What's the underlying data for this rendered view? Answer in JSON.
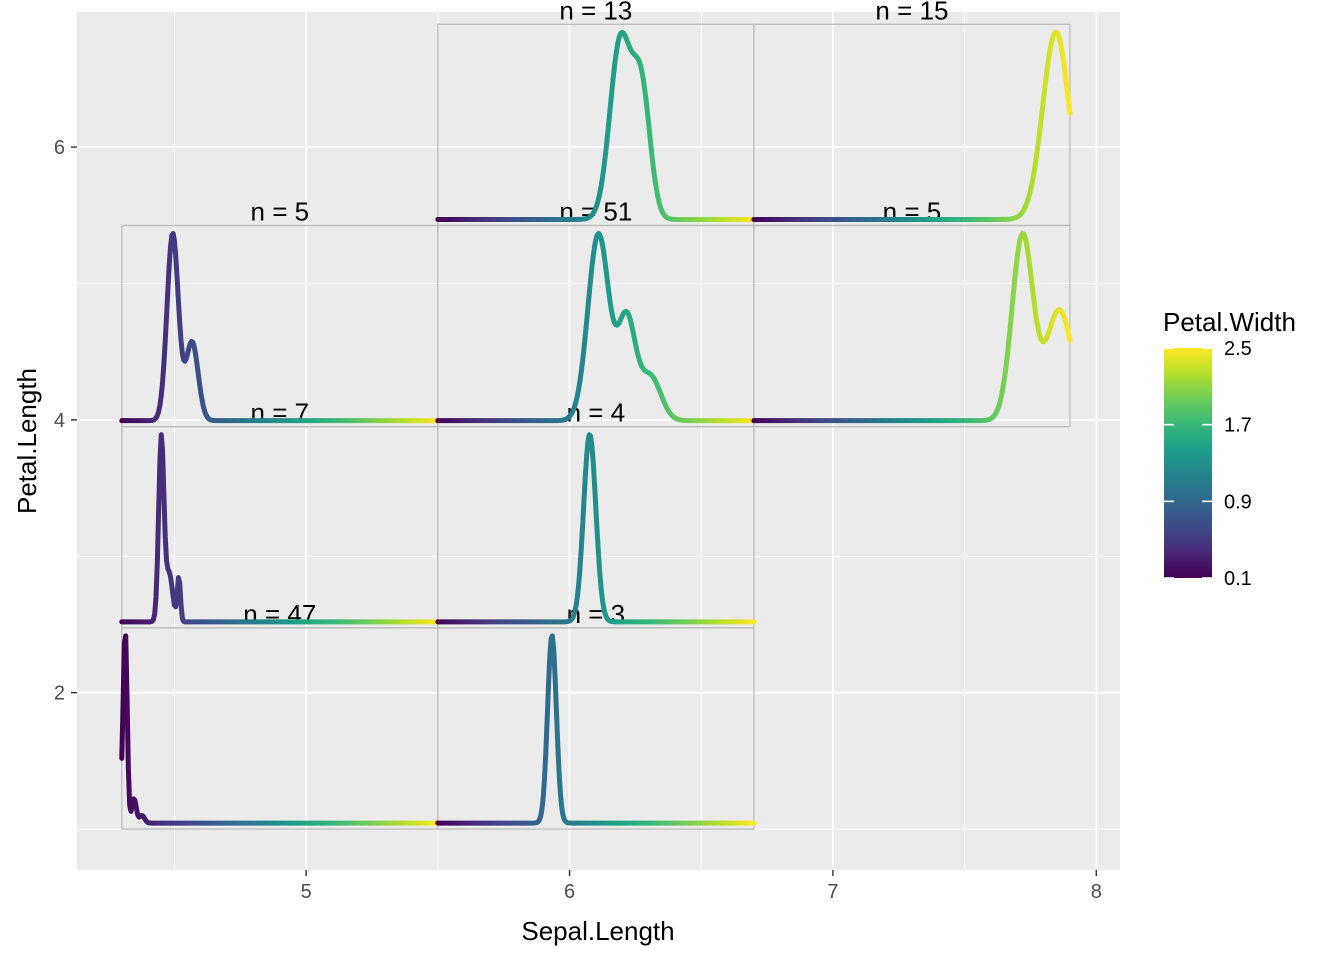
{
  "chart_data": {
    "type": "line",
    "xlabel": "Sepal.Length",
    "ylabel": "Petal.Length",
    "xlim": [
      4.13,
      8.09
    ],
    "ylim": [
      0.7,
      6.99
    ],
    "x_major_ticks": [
      5,
      6,
      7,
      8
    ],
    "x_minor_ticks": [
      4.5,
      5.5,
      6.5,
      7.5
    ],
    "y_major_ticks": [
      2,
      4,
      6
    ],
    "y_minor_ticks": [
      1,
      3,
      5
    ],
    "grid": true,
    "color_legend": {
      "title": "Petal.Width",
      "range": [
        0.1,
        2.5
      ],
      "ticks": [
        0.1,
        0.9,
        1.7,
        2.5
      ],
      "palette": "viridis",
      "colors": [
        "#440154",
        "#482878",
        "#3E4A89",
        "#31688E",
        "#26828E",
        "#1F9E89",
        "#35B779",
        "#6DCD59",
        "#B4DE2C",
        "#FDE725"
      ],
      "placement": "right"
    },
    "bin_x_edges": [
      4.3,
      5.5,
      6.7,
      7.9
    ],
    "bin_y_edges": [
      1.0,
      2.475,
      3.95,
      5.425,
      6.9
    ],
    "panels": [
      {
        "label": "n = 47",
        "col": 0,
        "row": 0,
        "pw_min": 0.1,
        "pw_max": 2.5,
        "peaks": [
          {
            "mu": 4.34,
            "sd": 0.022,
            "a": 1.0
          },
          {
            "mu": 4.44,
            "sd": 0.025,
            "a": 0.13
          },
          {
            "mu": 4.53,
            "sd": 0.03,
            "a": 0.04
          },
          {
            "mu": 4.3,
            "sd": 0.02,
            "a": 0.15
          }
        ]
      },
      {
        "label": "n = 3",
        "col": 1,
        "row": 0,
        "pw_min": 0.1,
        "pw_max": 2.5,
        "peaks": [
          {
            "mu": 5.6,
            "sd": 0.05,
            "a": 1.0
          }
        ]
      },
      {
        "label": "n = 7",
        "col": 0,
        "row": 1,
        "pw_min": 0.1,
        "pw_max": 2.5,
        "peaks": [
          {
            "mu": 4.75,
            "sd": 0.03,
            "a": 0.95
          },
          {
            "mu": 4.84,
            "sd": 0.04,
            "a": 0.25
          },
          {
            "mu": 4.95,
            "sd": 0.018,
            "a": 0.23
          }
        ]
      },
      {
        "label": "n = 4",
        "col": 1,
        "row": 1,
        "pw_min": 0.1,
        "pw_max": 2.5,
        "peaks": [
          {
            "mu": 6.03,
            "sd": 0.07,
            "a": 1.0
          }
        ]
      },
      {
        "label": "n = 5",
        "col": 0,
        "row": 2,
        "pw_min": 0.1,
        "pw_max": 2.5,
        "peaks": [
          {
            "mu": 4.88,
            "sd": 0.065,
            "a": 0.95
          },
          {
            "mu": 5.1,
            "sd": 0.07,
            "a": 0.4
          }
        ]
      },
      {
        "label": "n = 51",
        "col": 1,
        "row": 2,
        "pw_min": 0.1,
        "pw_max": 2.5,
        "peaks": [
          {
            "mu": 6.13,
            "sd": 0.12,
            "a": 0.93
          },
          {
            "mu": 6.45,
            "sd": 0.1,
            "a": 0.5
          },
          {
            "mu": 6.72,
            "sd": 0.12,
            "a": 0.22
          }
        ]
      },
      {
        "label": "n = 5",
        "col": 2,
        "row": 2,
        "pw_min": 0.1,
        "pw_max": 2.5,
        "peaks": [
          {
            "mu": 7.36,
            "sd": 0.12,
            "a": 0.97
          },
          {
            "mu": 7.78,
            "sd": 0.15,
            "a": 0.58
          }
        ]
      },
      {
        "label": "n = 13",
        "col": 1,
        "row": 3,
        "pw_min": 0.1,
        "pw_max": 2.5,
        "peaks": [
          {
            "mu": 6.38,
            "sd": 0.12,
            "a": 0.78
          },
          {
            "mu": 6.62,
            "sd": 0.1,
            "a": 0.55
          }
        ]
      },
      {
        "label": "n = 15",
        "col": 2,
        "row": 3,
        "pw_min": 0.1,
        "pw_max": 2.5,
        "peaks": [
          {
            "mu": 7.74,
            "sd": 0.15,
            "a": 1.0
          }
        ]
      }
    ]
  }
}
